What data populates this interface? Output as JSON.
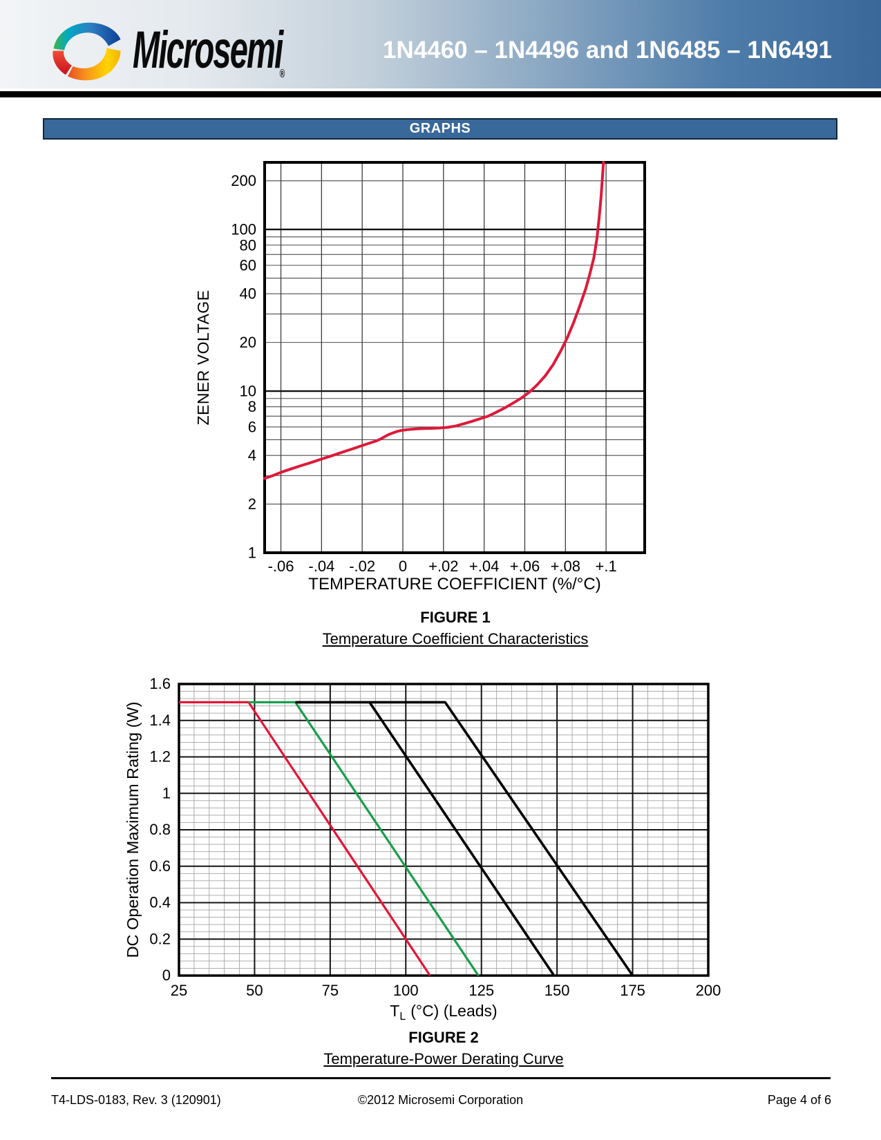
{
  "header": {
    "logo_text": "Microsemi",
    "logo_reg": "®",
    "title": "1N4460 – 1N4496 and 1N6485 – 1N6491"
  },
  "banner": {
    "label": "GRAPHS"
  },
  "figure1": {
    "caption_title": "FIGURE 1",
    "caption_subtitle": "Temperature Coefficient Characteristics"
  },
  "figure2": {
    "caption_title": "FIGURE 2",
    "caption_subtitle": "Temperature-Power Derating Curve"
  },
  "footer": {
    "left": "T4-LDS-0183, Rev. 3 (120901)",
    "center": "©2012 Microsemi Corporation",
    "right": "Page 4 of 6"
  },
  "chart_data": [
    {
      "id": "figure1",
      "type": "line",
      "title": "FIGURE 1",
      "subtitle": "Temperature Coefficient Characteristics",
      "xlabel": "TEMPERATURE COEFFICIENT (%/°C)",
      "ylabel": "ZENER VOLTAGE",
      "x_scale": "linear",
      "y_scale": "log",
      "xlim": [
        -0.068,
        0.119
      ],
      "ylim": [
        1,
        260
      ],
      "grid": "on",
      "legend": "none",
      "x_ticks": [
        {
          "v": -0.06,
          "label": "-.06"
        },
        {
          "v": -0.04,
          "label": "-.04"
        },
        {
          "v": -0.02,
          "label": "-.02"
        },
        {
          "v": 0,
          "label": "0"
        },
        {
          "v": 0.02,
          "label": "+.02"
        },
        {
          "v": 0.04,
          "label": "+.04"
        },
        {
          "v": 0.06,
          "label": "+.06"
        },
        {
          "v": 0.08,
          "label": "+.08"
        },
        {
          "v": 0.1,
          "label": "+.1"
        }
      ],
      "y_ticks": [
        {
          "v": 1,
          "label": "1"
        },
        {
          "v": 2,
          "label": "2"
        },
        {
          "v": 4,
          "label": "4"
        },
        {
          "v": 6,
          "label": "6"
        },
        {
          "v": 8,
          "label": "8"
        },
        {
          "v": 10,
          "label": "10"
        },
        {
          "v": 20,
          "label": "20"
        },
        {
          "v": 40,
          "label": "40"
        },
        {
          "v": 60,
          "label": "60"
        },
        {
          "v": 80,
          "label": "80"
        },
        {
          "v": 100,
          "label": "100"
        },
        {
          "v": 200,
          "label": "200"
        }
      ],
      "y_grid_minor": [
        2,
        3,
        4,
        5,
        6,
        7,
        8,
        9,
        20,
        30,
        40,
        50,
        60,
        70,
        80,
        90,
        200
      ],
      "y_grid_major": [
        10,
        100
      ],
      "series": [
        {
          "name": "zener-tc-curve",
          "color": "#dd1a3a",
          "points": [
            [
              -0.068,
              2.88
            ],
            [
              -0.064,
              3.0
            ],
            [
              -0.06,
              3.14
            ],
            [
              -0.055,
              3.3
            ],
            [
              -0.05,
              3.46
            ],
            [
              -0.045,
              3.62
            ],
            [
              -0.04,
              3.8
            ],
            [
              -0.035,
              3.98
            ],
            [
              -0.03,
              4.18
            ],
            [
              -0.025,
              4.38
            ],
            [
              -0.02,
              4.6
            ],
            [
              -0.016,
              4.78
            ],
            [
              -0.013,
              4.92
            ],
            [
              -0.011,
              5.05
            ],
            [
              -0.009,
              5.22
            ],
            [
              -0.007,
              5.38
            ],
            [
              -0.005,
              5.5
            ],
            [
              -0.003,
              5.62
            ],
            [
              -0.001,
              5.7
            ],
            [
              0.002,
              5.77
            ],
            [
              0.006,
              5.83
            ],
            [
              0.01,
              5.86
            ],
            [
              0.014,
              5.88
            ],
            [
              0.018,
              5.91
            ],
            [
              0.022,
              5.97
            ],
            [
              0.026,
              6.08
            ],
            [
              0.03,
              6.28
            ],
            [
              0.034,
              6.5
            ],
            [
              0.038,
              6.75
            ],
            [
              0.042,
              7.0
            ],
            [
              0.046,
              7.4
            ],
            [
              0.05,
              7.85
            ],
            [
              0.054,
              8.4
            ],
            [
              0.058,
              9.0
            ],
            [
              0.062,
              9.8
            ],
            [
              0.066,
              10.9
            ],
            [
              0.07,
              12.4
            ],
            [
              0.074,
              14.6
            ],
            [
              0.078,
              18.0
            ],
            [
              0.081,
              21.5
            ],
            [
              0.084,
              26.5
            ],
            [
              0.087,
              33.5
            ],
            [
              0.09,
              43.0
            ],
            [
              0.092,
              53.0
            ],
            [
              0.094,
              67.0
            ],
            [
              0.0955,
              88.0
            ],
            [
              0.0966,
              118.0
            ],
            [
              0.0975,
              158.0
            ],
            [
              0.0982,
              208.0
            ],
            [
              0.0987,
              260.0
            ]
          ]
        }
      ]
    },
    {
      "id": "figure2",
      "type": "line",
      "title": "FIGURE 2",
      "subtitle": "Temperature-Power Derating Curve",
      "xlabel_parts": [
        "T",
        "L",
        "(°C) (Leads)"
      ],
      "ylabel": "DC Operation Maximum Rating (W)",
      "x_scale": "linear",
      "y_scale": "linear",
      "xlim": [
        25,
        200
      ],
      "ylim": [
        0,
        1.6
      ],
      "x_minor_step": 5,
      "x_major_step": 25,
      "y_minor_step": 0.04,
      "y_major_step": 0.2,
      "grid": "on",
      "legend": "none",
      "x_ticks": [
        {
          "v": 25,
          "label": "25"
        },
        {
          "v": 50,
          "label": "50"
        },
        {
          "v": 75,
          "label": "75"
        },
        {
          "v": 100,
          "label": "100"
        },
        {
          "v": 125,
          "label": "125"
        },
        {
          "v": 150,
          "label": "150"
        },
        {
          "v": 175,
          "label": "175"
        },
        {
          "v": 200,
          "label": "200"
        }
      ],
      "y_ticks": [
        {
          "v": 0,
          "label": "0"
        },
        {
          "v": 0.2,
          "label": "0.2"
        },
        {
          "v": 0.4,
          "label": "0.4"
        },
        {
          "v": 0.6,
          "label": "0.6"
        },
        {
          "v": 0.8,
          "label": "0.8"
        },
        {
          "v": 1,
          "label": "1"
        },
        {
          "v": 1.2,
          "label": "1.2"
        },
        {
          "v": 1.4,
          "label": "1.4"
        },
        {
          "v": 1.6,
          "label": "1.6"
        }
      ],
      "series": [
        {
          "name": "derating-curve-red",
          "color": "#e51537",
          "points": [
            [
              25,
              1.5
            ],
            [
              48,
              1.5
            ],
            [
              108,
              0
            ]
          ]
        },
        {
          "name": "derating-curve-green",
          "color": "#189e4b",
          "points": [
            [
              48,
              1.5
            ],
            [
              63.5,
              1.5
            ],
            [
              124,
              0
            ]
          ]
        },
        {
          "name": "derating-curve-black-1",
          "color": "#000000",
          "points": [
            [
              63.5,
              1.5
            ],
            [
              88,
              1.5
            ],
            [
              149,
              0
            ]
          ]
        },
        {
          "name": "derating-curve-black-2",
          "color": "#000000",
          "points": [
            [
              88,
              1.5
            ],
            [
              113,
              1.5
            ],
            [
              175,
              0
            ]
          ]
        }
      ]
    }
  ]
}
